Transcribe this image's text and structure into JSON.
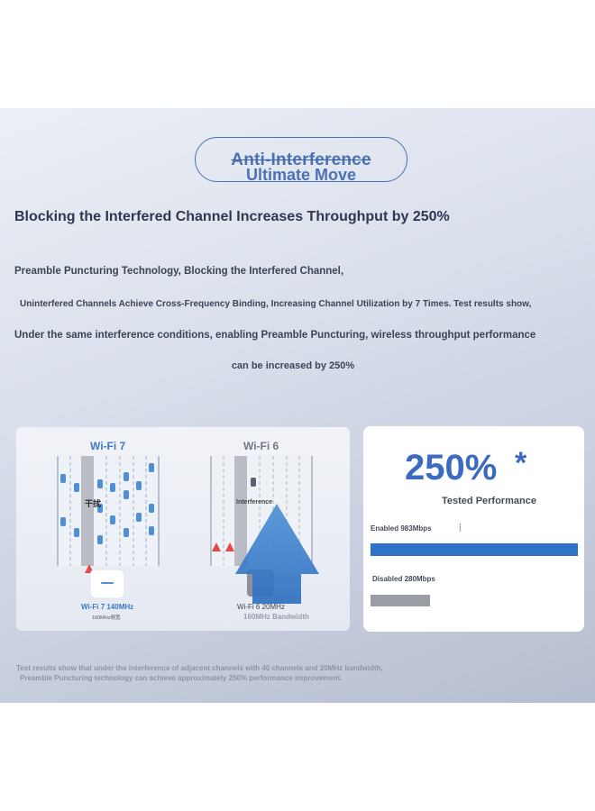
{
  "badge": {
    "line1": "Anti-Interference",
    "line2": "Ultimate Move"
  },
  "headline": "Blocking the Interfered Channel Increases Throughput by 250%",
  "description": {
    "line1": "Preamble Puncturing Technology, Blocking the Interfered Channel,",
    "line2": "Uninterfered Channels Achieve Cross-Frequency Binding, Increasing Channel Utilization by 7 Times. Test results show,",
    "line3": "Under the same interference conditions, enabling Preamble Puncturing, wireless throughput performance",
    "line4": "can be increased by 250%"
  },
  "diagram": {
    "wifi7_title": "Wi-Fi 7",
    "wifi6_title": "Wi-Fi 6",
    "interference_zh": "干扰",
    "interference_label": "Interference",
    "wifi7_caption": "Wi-Fi 7 140MHz",
    "wifi7_caption_sub": "160MHz频宽",
    "wifi6_caption": "Wi-Fi 6 20MHz",
    "wifi6_caption_sub": "160MHz Bandwidth"
  },
  "performance": {
    "value": "250%",
    "star": "*",
    "label": "Tested Performance",
    "enabled_label": "Enabled 983Mbps",
    "disabled_label": "Disabled 280Mbps",
    "enabled_mbps": 983,
    "disabled_mbps": 280,
    "enabled_color": "#2f73c8",
    "disabled_color": "#9a9da3"
  },
  "footnote": {
    "line1": "Test results show that under the interference of adjacent channels with 40 channels and 20MHz bandwidth,",
    "line2": "Preamble Puncturing technology can achieve approximately 250% performance improvement."
  },
  "colors": {
    "accent": "#3a6bc0",
    "banner_top": "#eceff6",
    "banner_bottom": "#b6bdd0"
  }
}
